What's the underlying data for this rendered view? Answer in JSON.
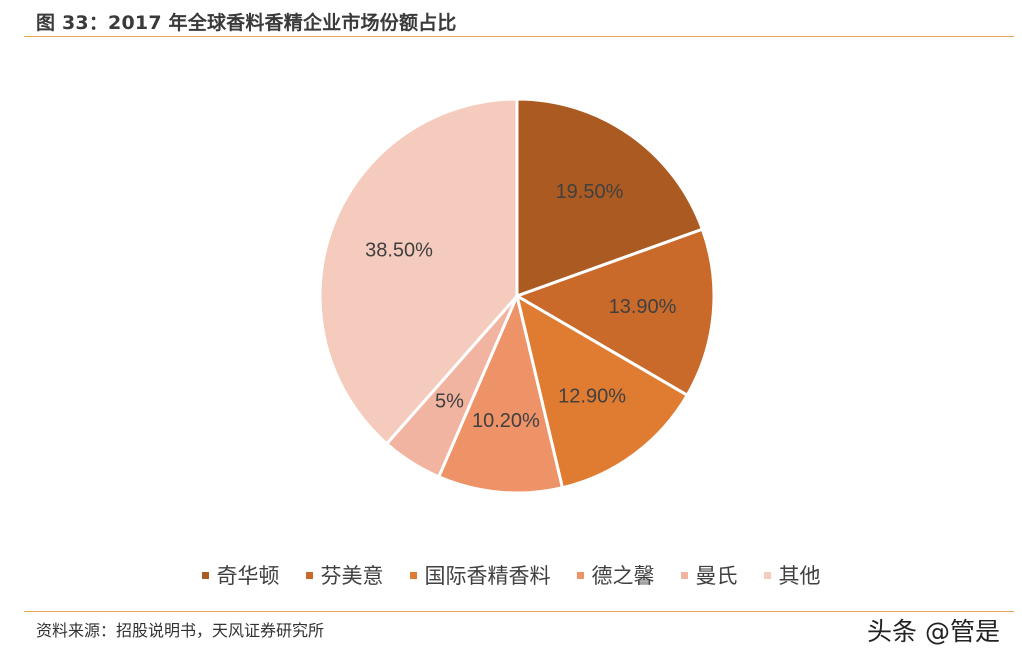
{
  "title": "图 33：2017 年全球香料香精企业市场份额占比",
  "source": "资料来源：招股说明书，天风证券研究所",
  "watermark": "头条 @管是",
  "chart_data": {
    "type": "pie",
    "categories": [
      "奇华顿",
      "芬美意",
      "国际香精香料",
      "德之馨",
      "曼氏",
      "其他"
    ],
    "values": [
      19.5,
      13.9,
      12.9,
      10.2,
      5,
      38.5
    ],
    "labels": [
      "19.50%",
      "13.90%",
      "12.90%",
      "10.20%",
      "5%",
      "38.50%"
    ],
    "colors": [
      "#ab5a21",
      "#c96a2b",
      "#e07c32",
      "#ee9267",
      "#f1b4a0",
      "#f5cbbd"
    ],
    "legend_position": "bottom"
  }
}
